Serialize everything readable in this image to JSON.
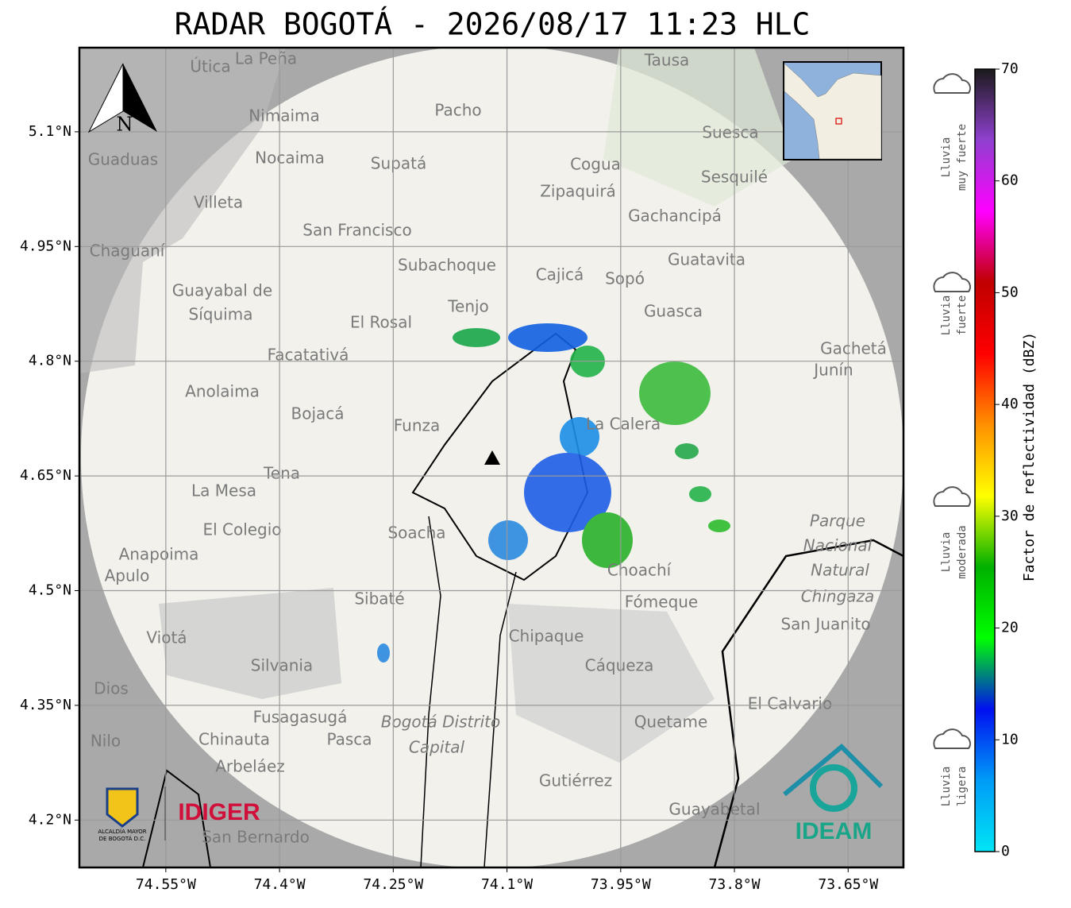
{
  "title": "RADAR BOGOTÁ - 2026/08/17 11:23 HLC",
  "map": {
    "xlim": [
      -74.664,
      -73.577
    ],
    "ylim": [
      4.138,
      5.21
    ],
    "xticks": [
      {
        "value": -74.55,
        "label": "74.55°W"
      },
      {
        "value": -74.4,
        "label": "74.4°W"
      },
      {
        "value": -74.25,
        "label": "74.25°W"
      },
      {
        "value": -74.1,
        "label": "74.1°W"
      },
      {
        "value": -73.95,
        "label": "73.95°W"
      },
      {
        "value": -73.8,
        "label": "73.8°W"
      },
      {
        "value": -73.65,
        "label": "73.65°W"
      }
    ],
    "yticks": [
      {
        "value": 5.1,
        "label": "5.1°N"
      },
      {
        "value": 4.95,
        "label": "4.95°N"
      },
      {
        "value": 4.8,
        "label": "4.8°N"
      },
      {
        "value": 4.65,
        "label": "4.65°N"
      },
      {
        "value": 4.5,
        "label": "4.5°N"
      },
      {
        "value": 4.35,
        "label": "4.35°N"
      },
      {
        "value": 4.2,
        "label": "4.2°N"
      }
    ],
    "grid": true,
    "north_label": "N",
    "places": [
      "La Peña",
      "Útica",
      "Tausa",
      "Pacho",
      "Nimaima",
      "Nocaima",
      "Supatá",
      "Guaduas",
      "Suesca",
      "Sesquilé",
      "Cogua",
      "Zipaquirá",
      "Villeta",
      "Gachancipá",
      "San Francisco",
      "Chaguaní",
      "Guatavita",
      "Subachoque",
      "Cajicá",
      "Sopó",
      "Guayabal de",
      "Síquima",
      "Tenjo",
      "Guasca",
      "El Rosal",
      "Facatativá",
      "Gachetá",
      "Junín",
      "Anolaima",
      "Bojacá",
      "Funza",
      "La Calera",
      "Tena",
      "La Mesa",
      "El Colegio",
      "Soacha",
      "Anapoima",
      "Apulo",
      "Choachí",
      "Sibaté",
      "Fómeque",
      "San Juanito",
      "Chipaque",
      "Viotá",
      "Silvania",
      "Cáqueza",
      "Dios",
      "Nilo",
      "El Calvario",
      "Fusagasugá",
      "Quetame",
      "Chinauta",
      "Pasca",
      "Arbeláez",
      "Gutiérrez",
      "Guayabetal",
      "San Bernardo",
      "Bogotá Distrito",
      "Capital",
      "Parque",
      "Nacional",
      "Natural",
      "Chingaza"
    ]
  },
  "colorbar": {
    "label": "Factor de reflectividad (dBZ)",
    "lim": [
      0,
      70
    ],
    "ticks": [
      0,
      10,
      20,
      30,
      40,
      50,
      60,
      70
    ],
    "colors": [
      "#00e5f5",
      "#009cf7",
      "#0010f0",
      "#00ff00",
      "#00b000",
      "#ffff00",
      "#ff9000",
      "#ff0000",
      "#c00000",
      "#ff00ff",
      "#9040d0",
      "#1a1a1a"
    ]
  },
  "rain_levels": [
    [
      "Lluvia",
      "muy fuerte"
    ],
    [
      "Lluvia",
      "fuerte"
    ],
    [
      "Lluvia",
      "moderada"
    ],
    [
      "Lluvia",
      "ligera"
    ]
  ],
  "logos": {
    "alcaldia": [
      "ALCALDÍA MAYOR",
      "DE BOGOTÁ D.C."
    ],
    "idiger": "IDIGER",
    "ideam": "IDEAM"
  }
}
